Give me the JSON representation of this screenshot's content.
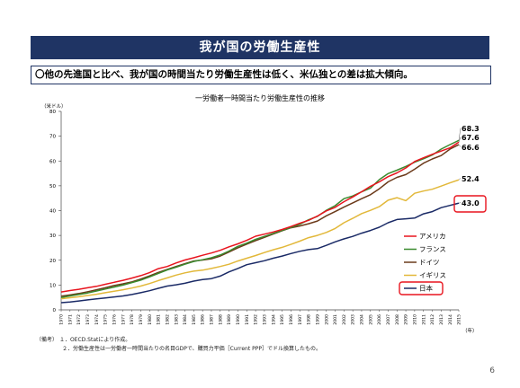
{
  "slide": {
    "title": "我が国の労働生産性",
    "summary": "〇他の先進国と比べ、我が国の時間当たり労働生産性は低く、米仏独との差は拡大傾向。",
    "page_number": "6",
    "notes": {
      "label": "（備考）",
      "items": [
        "１．OECD.Statにより作成。",
        "２．労働生産性は一労働者一時間当たりの名目GDPで、購買力平価［Current PPP］でドル換算したもの。"
      ]
    }
  },
  "colors": {
    "accent": "#1f3464",
    "highlight": "#e8141e",
    "america": "#e8141e",
    "france": "#3a8a2e",
    "germany": "#6b3a1a",
    "uk": "#e2b83a",
    "japan": "#1a2a66"
  },
  "chart_data": {
    "type": "line",
    "title": "一労働者一時間当たり労働生産性の推移",
    "ylabel": "（米ドル）",
    "xlabel": "（年）",
    "ylim": [
      0,
      80
    ],
    "yticks": [
      0,
      10,
      20,
      30,
      40,
      50,
      60,
      70,
      80
    ],
    "grid": false,
    "legend_position": "right",
    "x": [
      1970,
      1971,
      1972,
      1973,
      1974,
      1975,
      1976,
      1977,
      1978,
      1979,
      1980,
      1981,
      1982,
      1983,
      1984,
      1985,
      1986,
      1987,
      1988,
      1989,
      1990,
      1991,
      1992,
      1993,
      1994,
      1995,
      1996,
      1997,
      1998,
      1999,
      2000,
      2001,
      2002,
      2003,
      2004,
      2005,
      2006,
      2007,
      2008,
      2009,
      2010,
      2011,
      2012,
      2013,
      2014,
      2015
    ],
    "series": [
      {
        "name": "アメリカ",
        "color_key": "america",
        "end_label": "67.6",
        "values": [
          7.2,
          7.8,
          8.3,
          8.9,
          9.5,
          10.3,
          11.1,
          11.9,
          12.8,
          13.8,
          15.0,
          16.6,
          17.5,
          18.9,
          20.1,
          21.0,
          22.0,
          22.9,
          24.0,
          25.4,
          26.6,
          28.0,
          29.7,
          30.5,
          31.4,
          32.4,
          33.6,
          34.9,
          36.1,
          37.8,
          39.9,
          41.3,
          43.6,
          45.5,
          47.6,
          49.8,
          51.6,
          53.7,
          55.2,
          57.2,
          59.8,
          61.3,
          62.7,
          64.0,
          65.3,
          67.6
        ]
      },
      {
        "name": "フランス",
        "color_key": "france",
        "end_label": "68.3",
        "values": [
          5.0,
          5.6,
          6.2,
          6.8,
          7.6,
          8.4,
          9.2,
          10.0,
          11.0,
          12.0,
          13.3,
          14.7,
          16.1,
          17.2,
          18.4,
          19.5,
          20.2,
          21.0,
          22.1,
          23.7,
          25.6,
          26.9,
          28.4,
          29.6,
          30.8,
          32.0,
          33.2,
          34.5,
          36.3,
          37.7,
          40.1,
          42.0,
          44.8,
          45.9,
          47.6,
          49.1,
          52.5,
          54.9,
          56.3,
          57.8,
          59.5,
          60.9,
          62.4,
          64.8,
          66.6,
          68.3
        ]
      },
      {
        "name": "ドイツ",
        "color_key": "germany",
        "end_label": "66.6",
        "values": [
          5.5,
          6.0,
          6.6,
          7.3,
          8.1,
          8.9,
          9.8,
          10.5,
          11.3,
          12.4,
          13.7,
          15.1,
          16.3,
          17.5,
          18.6,
          19.7,
          20.1,
          20.6,
          21.7,
          23.3,
          25.0,
          26.5,
          27.9,
          29.2,
          30.6,
          31.9,
          33.1,
          33.8,
          34.7,
          35.8,
          37.9,
          39.6,
          41.4,
          43.1,
          44.8,
          46.4,
          48.8,
          51.6,
          53.4,
          54.5,
          56.7,
          59.1,
          60.8,
          62.2,
          64.8,
          66.6
        ]
      },
      {
        "name": "イギリス",
        "color_key": "uk",
        "end_label": "52.4",
        "values": [
          4.5,
          4.9,
          5.3,
          5.8,
          6.3,
          6.9,
          7.5,
          8.1,
          8.8,
          9.6,
          10.6,
          11.8,
          12.9,
          14.0,
          14.9,
          15.6,
          16.0,
          16.7,
          17.5,
          18.4,
          19.7,
          20.8,
          21.9,
          23.1,
          24.2,
          25.2,
          26.4,
          27.7,
          29.1,
          30.0,
          31.2,
          32.8,
          35.1,
          36.9,
          38.8,
          40.1,
          41.6,
          44.2,
          45.2,
          44.0,
          47.0,
          47.9,
          48.6,
          49.9,
          51.2,
          52.4
        ]
      },
      {
        "name": "日本",
        "color_key": "japan",
        "end_label": "43.0",
        "values": [
          2.9,
          3.2,
          3.6,
          4.0,
          4.4,
          4.8,
          5.2,
          5.6,
          6.2,
          6.9,
          7.7,
          8.7,
          9.6,
          10.1,
          10.7,
          11.6,
          12.2,
          12.6,
          13.6,
          15.3,
          16.7,
          18.2,
          19.0,
          19.8,
          20.8,
          21.7,
          22.7,
          23.6,
          24.3,
          24.7,
          26.0,
          27.4,
          28.6,
          29.6,
          30.9,
          32.0,
          33.3,
          35.1,
          36.4,
          36.7,
          37.0,
          38.7,
          39.6,
          41.2,
          42.1,
          43.0
        ]
      }
    ],
    "highlighted": [
      "日本"
    ]
  }
}
